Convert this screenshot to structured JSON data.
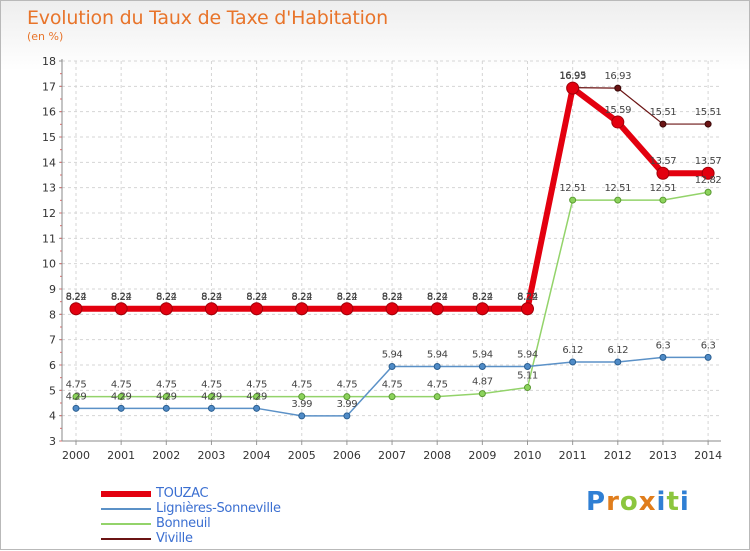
{
  "header": {
    "title": "Evolution du Taux de Taxe d'Habitation",
    "subtitle": "(en %)"
  },
  "brand": {
    "name": "Proxiti",
    "colors": [
      "#2f7fd4",
      "#e07d1c",
      "#8cc63e",
      "#e07d1c",
      "#2f7fd4",
      "#8cc63e",
      "#2f7fd4"
    ]
  },
  "chart_data": {
    "type": "line",
    "x": [
      2000,
      2001,
      2002,
      2003,
      2004,
      2005,
      2006,
      2007,
      2008,
      2009,
      2010,
      2011,
      2012,
      2013,
      2014
    ],
    "ylim": [
      3,
      18
    ],
    "yticks": [
      3,
      4,
      5,
      6,
      7,
      8,
      9,
      10,
      11,
      12,
      13,
      14,
      15,
      16,
      17,
      18
    ],
    "grid": true,
    "legend_position": "bottom-left",
    "series": [
      {
        "name": "Viville",
        "color": "#6b1414",
        "values": [
          8.24,
          8.24,
          8.24,
          8.24,
          8.24,
          8.24,
          8.24,
          8.24,
          8.24,
          8.24,
          8.24,
          16.95,
          16.93,
          15.51,
          15.51
        ],
        "labels": [
          "8.24",
          "8.24",
          "8.24",
          "8.24",
          "8.24",
          "8.24",
          "8.24",
          "8.24",
          "8.24",
          "8.24",
          "8.24",
          "16.95",
          "16.93",
          "15.51",
          "15.51"
        ]
      },
      {
        "name": "Bonneuil",
        "color": "#93d36a",
        "values": [
          4.75,
          4.75,
          4.75,
          4.75,
          4.75,
          4.75,
          4.75,
          4.75,
          4.75,
          4.87,
          5.11,
          12.51,
          12.51,
          12.51,
          12.82
        ],
        "labels": [
          "4.75",
          "4.75",
          "4.75",
          "4.75",
          "4.75",
          "4.75",
          "4.75",
          "4.75",
          "4.75",
          "4.87",
          "5.11",
          "12.51",
          "12.51",
          "12.51",
          "12.82"
        ]
      },
      {
        "name": "Lignières-Sonneville",
        "color": "#5b91c7",
        "values": [
          4.29,
          4.29,
          4.29,
          4.29,
          4.29,
          3.99,
          3.99,
          5.94,
          5.94,
          5.94,
          5.94,
          6.12,
          6.12,
          6.3,
          6.3
        ],
        "labels": [
          "4.29",
          "4.29",
          "4.29",
          "4.29",
          "4.29",
          "3.99",
          "3.99",
          "5.94",
          "5.94",
          "5.94",
          "5.94",
          "6.12",
          "6.12",
          "6.3",
          "6.3"
        ]
      },
      {
        "name": "TOUZAC",
        "color": "#e3000f",
        "values": [
          8.22,
          8.22,
          8.22,
          8.22,
          8.22,
          8.22,
          8.22,
          8.22,
          8.22,
          8.22,
          8.22,
          16.93,
          15.59,
          13.57,
          13.57
        ],
        "labels": [
          "8.22",
          "8.22",
          "8.22",
          "8.22",
          "8.22",
          "8.22",
          "8.22",
          "8.22",
          "8.22",
          "8.22",
          "8.22",
          "16.93",
          "15.59",
          "13.57",
          "13.57"
        ]
      }
    ],
    "legend_order": [
      "TOUZAC",
      "Lignières-Sonneville",
      "Bonneuil",
      "Viville"
    ]
  }
}
